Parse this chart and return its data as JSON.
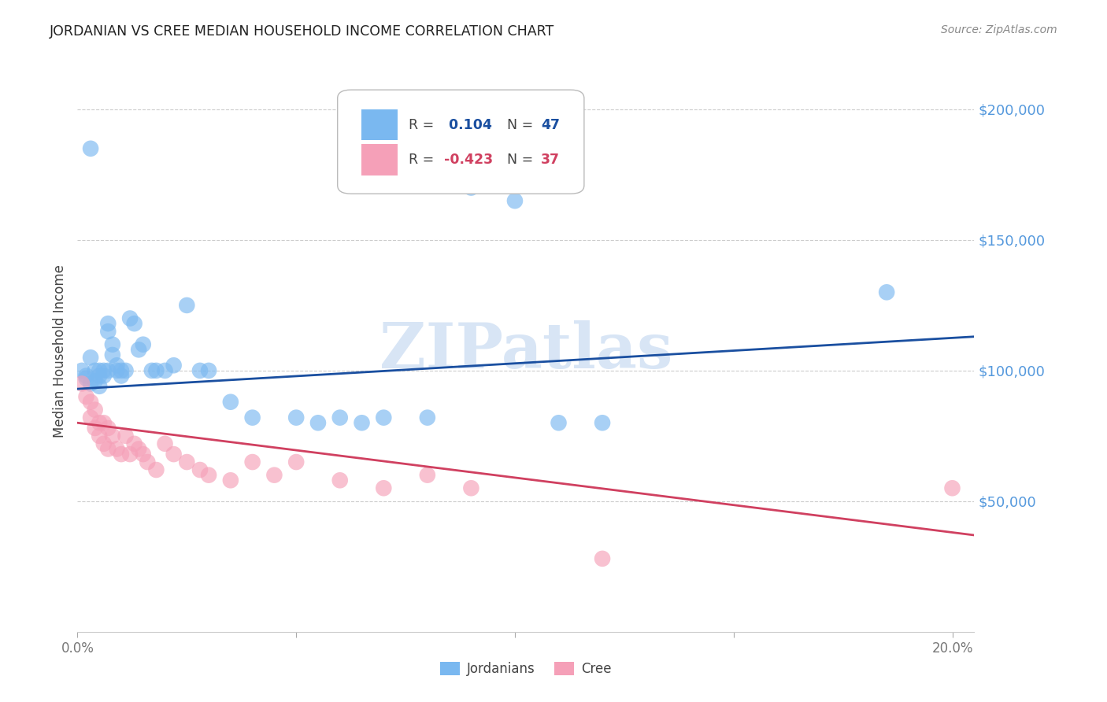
{
  "title": "JORDANIAN VS CREE MEDIAN HOUSEHOLD INCOME CORRELATION CHART",
  "source": "Source: ZipAtlas.com",
  "ylabel": "Median Household Income",
  "watermark": "ZIPatlas",
  "blue_color": "#7ab8f0",
  "pink_color": "#f5a0b8",
  "line_blue": "#1a4fa0",
  "line_pink": "#d04060",
  "axis_label_color": "#5599dd",
  "grid_color": "#cccccc",
  "title_color": "#222222",
  "source_color": "#888888",
  "ylabel_color": "#444444",
  "xlim": [
    0.0,
    0.205
  ],
  "ylim": [
    0,
    215000
  ],
  "xtick_positions": [
    0.0,
    0.05,
    0.1,
    0.15,
    0.2
  ],
  "ytick_positions": [
    0,
    50000,
    100000,
    150000,
    200000
  ],
  "ytick_labels": [
    "",
    "$50,000",
    "$100,000",
    "$150,000",
    "$200,000"
  ],
  "jordanians_x": [
    0.001,
    0.002,
    0.002,
    0.003,
    0.003,
    0.004,
    0.004,
    0.005,
    0.005,
    0.005,
    0.006,
    0.006,
    0.007,
    0.007,
    0.007,
    0.008,
    0.008,
    0.009,
    0.009,
    0.01,
    0.01,
    0.011,
    0.012,
    0.013,
    0.014,
    0.015,
    0.017,
    0.018,
    0.02,
    0.022,
    0.025,
    0.028,
    0.03,
    0.035,
    0.04,
    0.05,
    0.055,
    0.06,
    0.065,
    0.07,
    0.08,
    0.09,
    0.1,
    0.11,
    0.12,
    0.185,
    0.003
  ],
  "jordanians_y": [
    100000,
    98000,
    97000,
    105000,
    95000,
    100000,
    96000,
    100000,
    98000,
    94000,
    100000,
    98000,
    100000,
    118000,
    115000,
    110000,
    106000,
    102000,
    100000,
    100000,
    98000,
    100000,
    120000,
    118000,
    108000,
    110000,
    100000,
    100000,
    100000,
    102000,
    125000,
    100000,
    100000,
    88000,
    82000,
    82000,
    80000,
    82000,
    80000,
    82000,
    82000,
    170000,
    165000,
    80000,
    80000,
    130000,
    185000
  ],
  "cree_x": [
    0.001,
    0.002,
    0.003,
    0.003,
    0.004,
    0.004,
    0.005,
    0.005,
    0.006,
    0.006,
    0.007,
    0.007,
    0.008,
    0.009,
    0.01,
    0.011,
    0.012,
    0.013,
    0.014,
    0.015,
    0.016,
    0.018,
    0.02,
    0.022,
    0.025,
    0.028,
    0.03,
    0.035,
    0.04,
    0.045,
    0.05,
    0.06,
    0.07,
    0.08,
    0.09,
    0.12,
    0.2
  ],
  "cree_y": [
    95000,
    90000,
    88000,
    82000,
    85000,
    78000,
    80000,
    75000,
    80000,
    72000,
    78000,
    70000,
    75000,
    70000,
    68000,
    75000,
    68000,
    72000,
    70000,
    68000,
    65000,
    62000,
    72000,
    68000,
    65000,
    62000,
    60000,
    58000,
    65000,
    60000,
    65000,
    58000,
    55000,
    60000,
    55000,
    28000,
    55000
  ],
  "blue_trendline": [
    0.0,
    0.205,
    93000,
    113000
  ],
  "pink_trendline": [
    0.0,
    0.205,
    80000,
    37000
  ]
}
